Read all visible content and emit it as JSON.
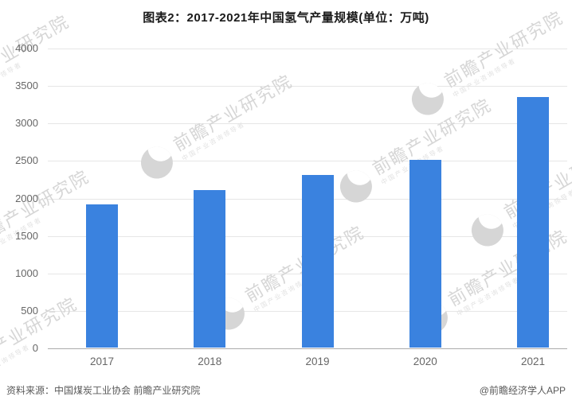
{
  "header": {
    "title": "图表2：2017-2021年中国氢气产量规模(单位：万吨)"
  },
  "chart_data": {
    "type": "bar",
    "title": "2017-2021年中国氢气产量规模",
    "unit": "万吨",
    "categories": [
      "2017",
      "2018",
      "2019",
      "2020",
      "2021"
    ],
    "values": [
      1915,
      2100,
      2300,
      2500,
      3342
    ],
    "xlabel": "",
    "ylabel": "",
    "ylim": [
      0,
      4000
    ],
    "yticks": [
      0,
      500,
      1000,
      1500,
      2000,
      2500,
      3000,
      3500,
      4000
    ],
    "grid": true,
    "legend_position": "none",
    "bar_color": "#3a82df"
  },
  "watermark": {
    "logo": "qianzhan-bird-logo",
    "brand": "前瞻产业研究院",
    "subtext": "中国产业咨询领导者"
  },
  "footer": {
    "source": "资料来源：中国煤炭工业协会 前瞻产业研究院",
    "credit": "@前瞻经济学人APP"
  },
  "colors": {
    "bar": "#3a82df",
    "gridline": "#e6e6e6",
    "axis_line": "#ababab",
    "tick_text": "#666666",
    "title_text": "#1a1a1a",
    "footer_text": "#595959",
    "watermark": "#d6d6d6"
  }
}
